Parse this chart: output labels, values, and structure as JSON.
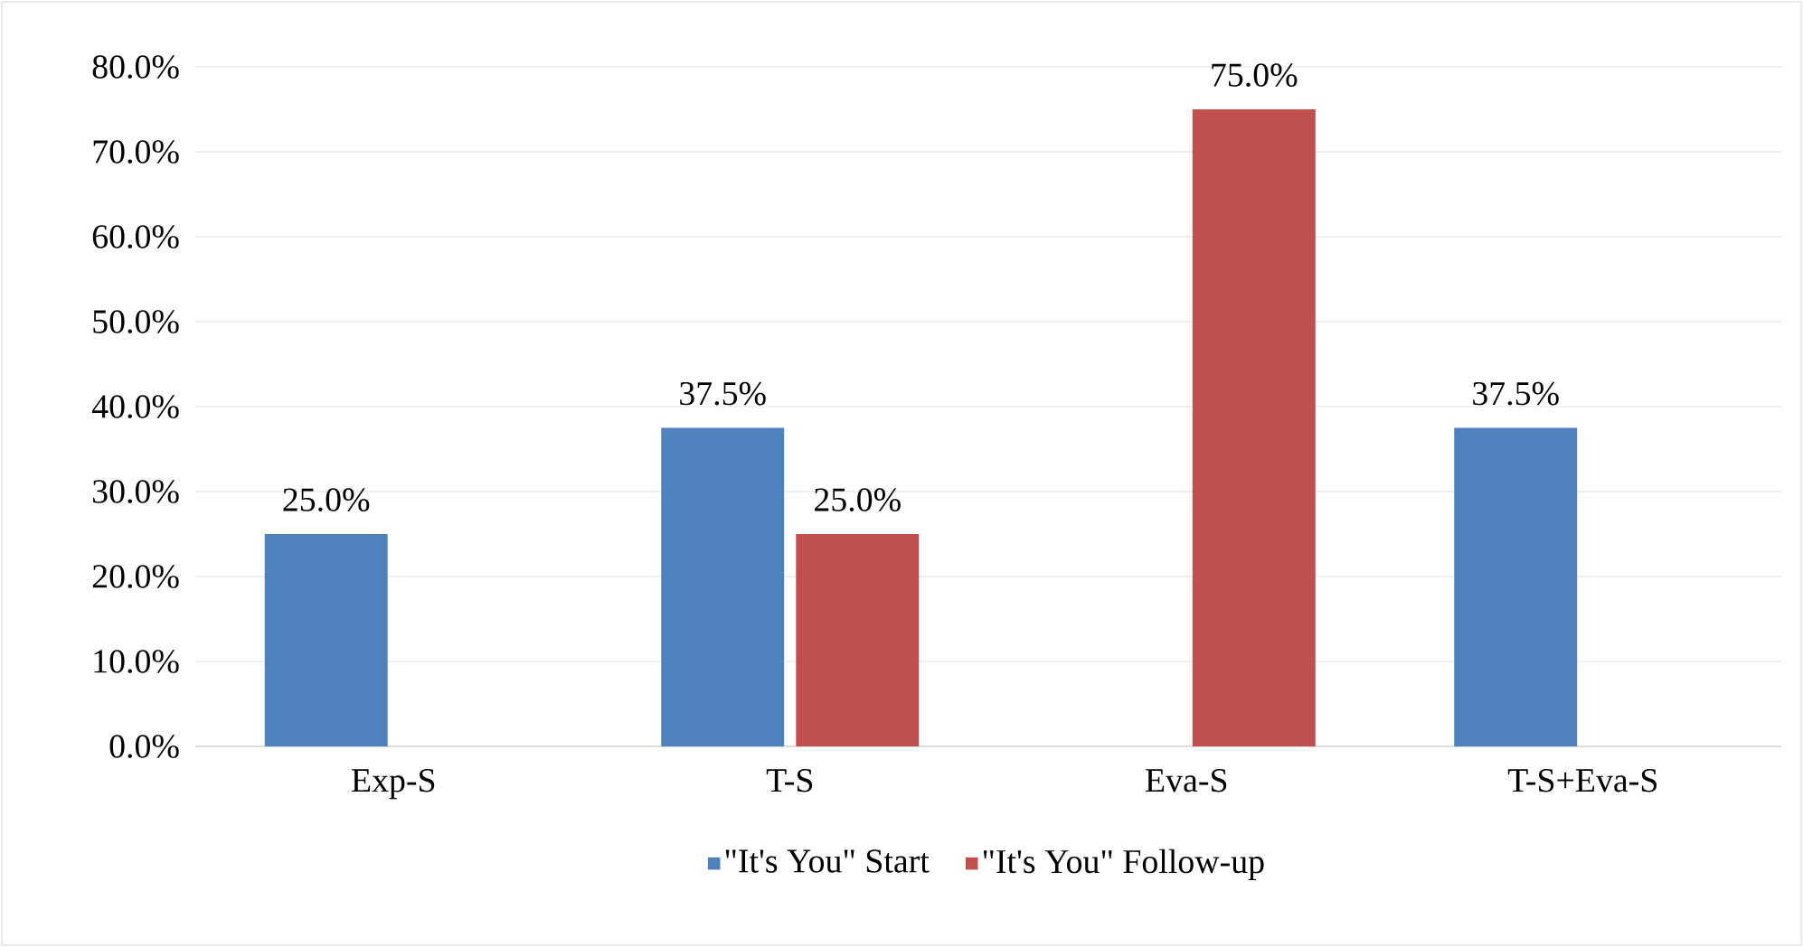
{
  "chart_data": {
    "type": "bar",
    "categories": [
      "Exp-S",
      "T-S",
      "Eva-S",
      "T-S+Eva-S"
    ],
    "series": [
      {
        "name": "\"It's You\" Start",
        "color": "#4f81bd",
        "values": [
          25.0,
          37.5,
          null,
          37.5
        ],
        "value_labels": [
          "25.0%",
          "37.5%",
          null,
          "37.5%"
        ]
      },
      {
        "name": "\"It's You\" Follow-up",
        "color": "#c0504d",
        "values": [
          null,
          25.0,
          75.0,
          null
        ],
        "value_labels": [
          null,
          "25.0%",
          "75.0%",
          null
        ]
      }
    ],
    "ylim": [
      0,
      80
    ],
    "yticks": [
      {
        "value": 0,
        "label": "0.0%"
      },
      {
        "value": 10,
        "label": "10.0%"
      },
      {
        "value": 20,
        "label": "20.0%"
      },
      {
        "value": 30,
        "label": "30.0%"
      },
      {
        "value": 40,
        "label": "40.0%"
      },
      {
        "value": 50,
        "label": "50.0%"
      },
      {
        "value": 60,
        "label": "60.0%"
      },
      {
        "value": 70,
        "label": "70.0%"
      },
      {
        "value": 80,
        "label": "80.0%"
      }
    ],
    "grid": "y",
    "legend": "bottom"
  }
}
